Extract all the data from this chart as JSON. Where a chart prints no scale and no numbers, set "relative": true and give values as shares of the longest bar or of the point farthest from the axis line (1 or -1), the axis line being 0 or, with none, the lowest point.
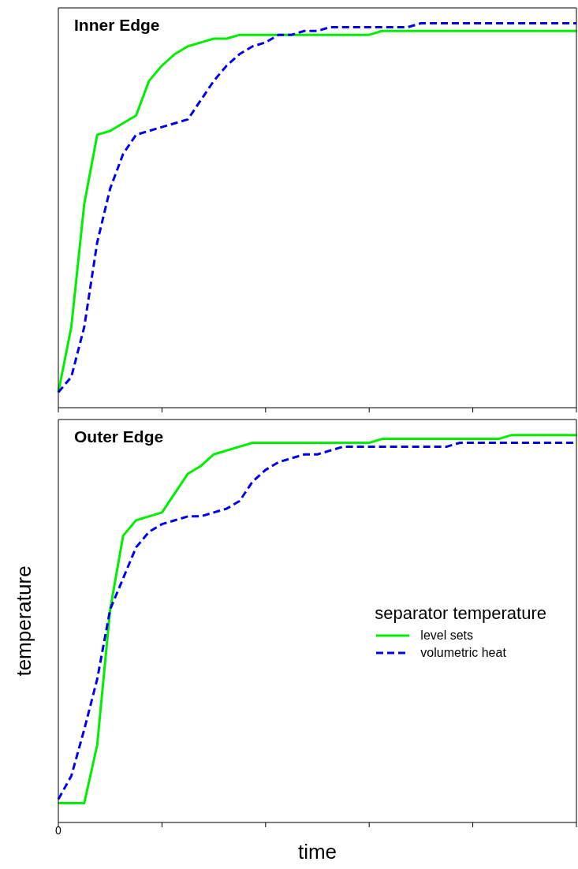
{
  "chart_data": [
    {
      "type": "line",
      "title": "Inner Edge",
      "relative": true,
      "categories": [
        null,
        null,
        null,
        null,
        null,
        null,
        null,
        null,
        null,
        null,
        null,
        null,
        null,
        null,
        null,
        null,
        null,
        null,
        null,
        null,
        null,
        null,
        null,
        null,
        null,
        null,
        null,
        null,
        null,
        null,
        null,
        null,
        null,
        null,
        null,
        null,
        null,
        null,
        null,
        null,
        null
      ],
      "marker": "none",
      "series": [
        {
          "color": "#00ee00",
          "line_style": "solid",
          "values": [
            0.04,
            0.21,
            0.53,
            0.71,
            0.72,
            0.74,
            0.76,
            0.85,
            0.89,
            0.92,
            0.94,
            0.95,
            0.96,
            0.96,
            0.97,
            0.97,
            0.97,
            0.97,
            0.97,
            0.97,
            0.97,
            0.97,
            0.97,
            0.97,
            0.97,
            0.98,
            0.98,
            0.98,
            0.98,
            0.98,
            0.98,
            0.98,
            0.98,
            0.98,
            0.98,
            0.98,
            0.98,
            0.98,
            0.98,
            0.98,
            0.98
          ]
        },
        {
          "color": "#0000ee",
          "line_style": "dashed",
          "values": [
            0.04,
            0.08,
            0.21,
            0.43,
            0.57,
            0.66,
            0.71,
            0.72,
            0.73,
            0.74,
            0.75,
            0.8,
            0.85,
            0.89,
            0.92,
            0.94,
            0.95,
            0.97,
            0.97,
            0.98,
            0.98,
            0.99,
            0.99,
            0.99,
            0.99,
            0.99,
            0.99,
            0.99,
            1,
            1,
            1,
            1,
            1,
            1,
            1,
            1,
            1,
            1,
            1,
            1,
            1
          ]
        }
      ]
    },
    {
      "type": "line",
      "title": "Outer Edge",
      "relative": true,
      "annotations": [
        "0"
      ],
      "xlabel": "time",
      "ylabel": "temperature",
      "legend": "right",
      "legend_title": "separator temperature",
      "categories": [
        null,
        null,
        null,
        null,
        null,
        null,
        null,
        null,
        null,
        null,
        null,
        null,
        null,
        null,
        null,
        null,
        null,
        null,
        null,
        null,
        null,
        null,
        null,
        null,
        null,
        null,
        null,
        null,
        null,
        null,
        null,
        null,
        null,
        null,
        null,
        null,
        null,
        null,
        null,
        null,
        null
      ],
      "marker": "none",
      "series": [
        {
          "name": "level sets",
          "color": "#00ee00",
          "line_style": "solid",
          "values": [
            0.05,
            0.05,
            0.05,
            0.2,
            0.55,
            0.74,
            0.78,
            0.79,
            0.8,
            0.85,
            0.9,
            0.92,
            0.95,
            0.96,
            0.97,
            0.98,
            0.98,
            0.98,
            0.98,
            0.98,
            0.98,
            0.98,
            0.98,
            0.98,
            0.98,
            0.99,
            0.99,
            0.99,
            0.99,
            0.99,
            0.99,
            0.99,
            0.99,
            0.99,
            0.99,
            1,
            1,
            1,
            1,
            1,
            1
          ]
        },
        {
          "name": "volumetric heat",
          "color": "#0000ee",
          "line_style": "dashed",
          "values": [
            0.06,
            0.12,
            0.24,
            0.37,
            0.55,
            0.63,
            0.71,
            0.75,
            0.77,
            0.78,
            0.79,
            0.79,
            0.8,
            0.81,
            0.83,
            0.88,
            0.91,
            0.93,
            0.94,
            0.95,
            0.95,
            0.96,
            0.97,
            0.97,
            0.97,
            0.97,
            0.97,
            0.97,
            0.97,
            0.97,
            0.97,
            0.98,
            0.98,
            0.98,
            0.98,
            0.98,
            0.98,
            0.98,
            0.98,
            0.98,
            0.98
          ]
        }
      ]
    }
  ]
}
